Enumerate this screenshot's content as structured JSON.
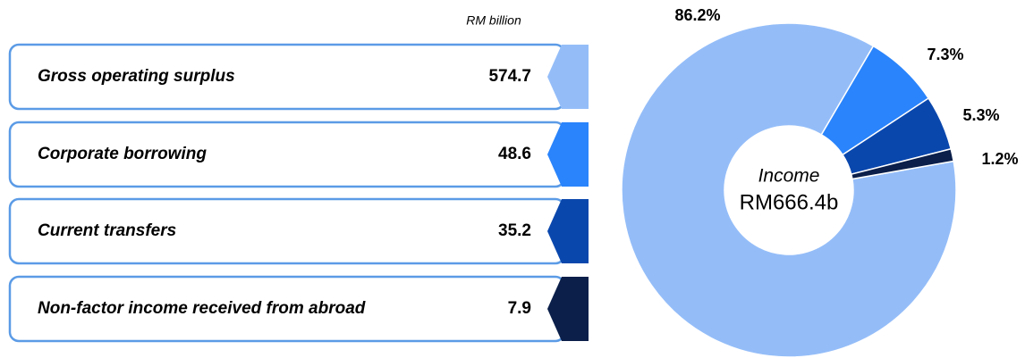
{
  "chart_data": {
    "type": "donut",
    "unit_label": "RM billion",
    "categories": [
      "Gross operating surplus",
      "Corporate borrowing",
      "Current transfers",
      "Non-factor income received from abroad"
    ],
    "amounts": [
      574.7,
      48.6,
      35.2,
      7.9
    ],
    "values": [
      86.2,
      7.3,
      5.3,
      1.2
    ],
    "value_labels": [
      "86.2%",
      "7.3%",
      "5.3%",
      "1.2%"
    ],
    "colors": [
      "#94bdf8",
      "#2a84fb",
      "#0a47ad",
      "#0b1f4a"
    ],
    "center_title": "Income",
    "center_value": "RM666.4b"
  }
}
